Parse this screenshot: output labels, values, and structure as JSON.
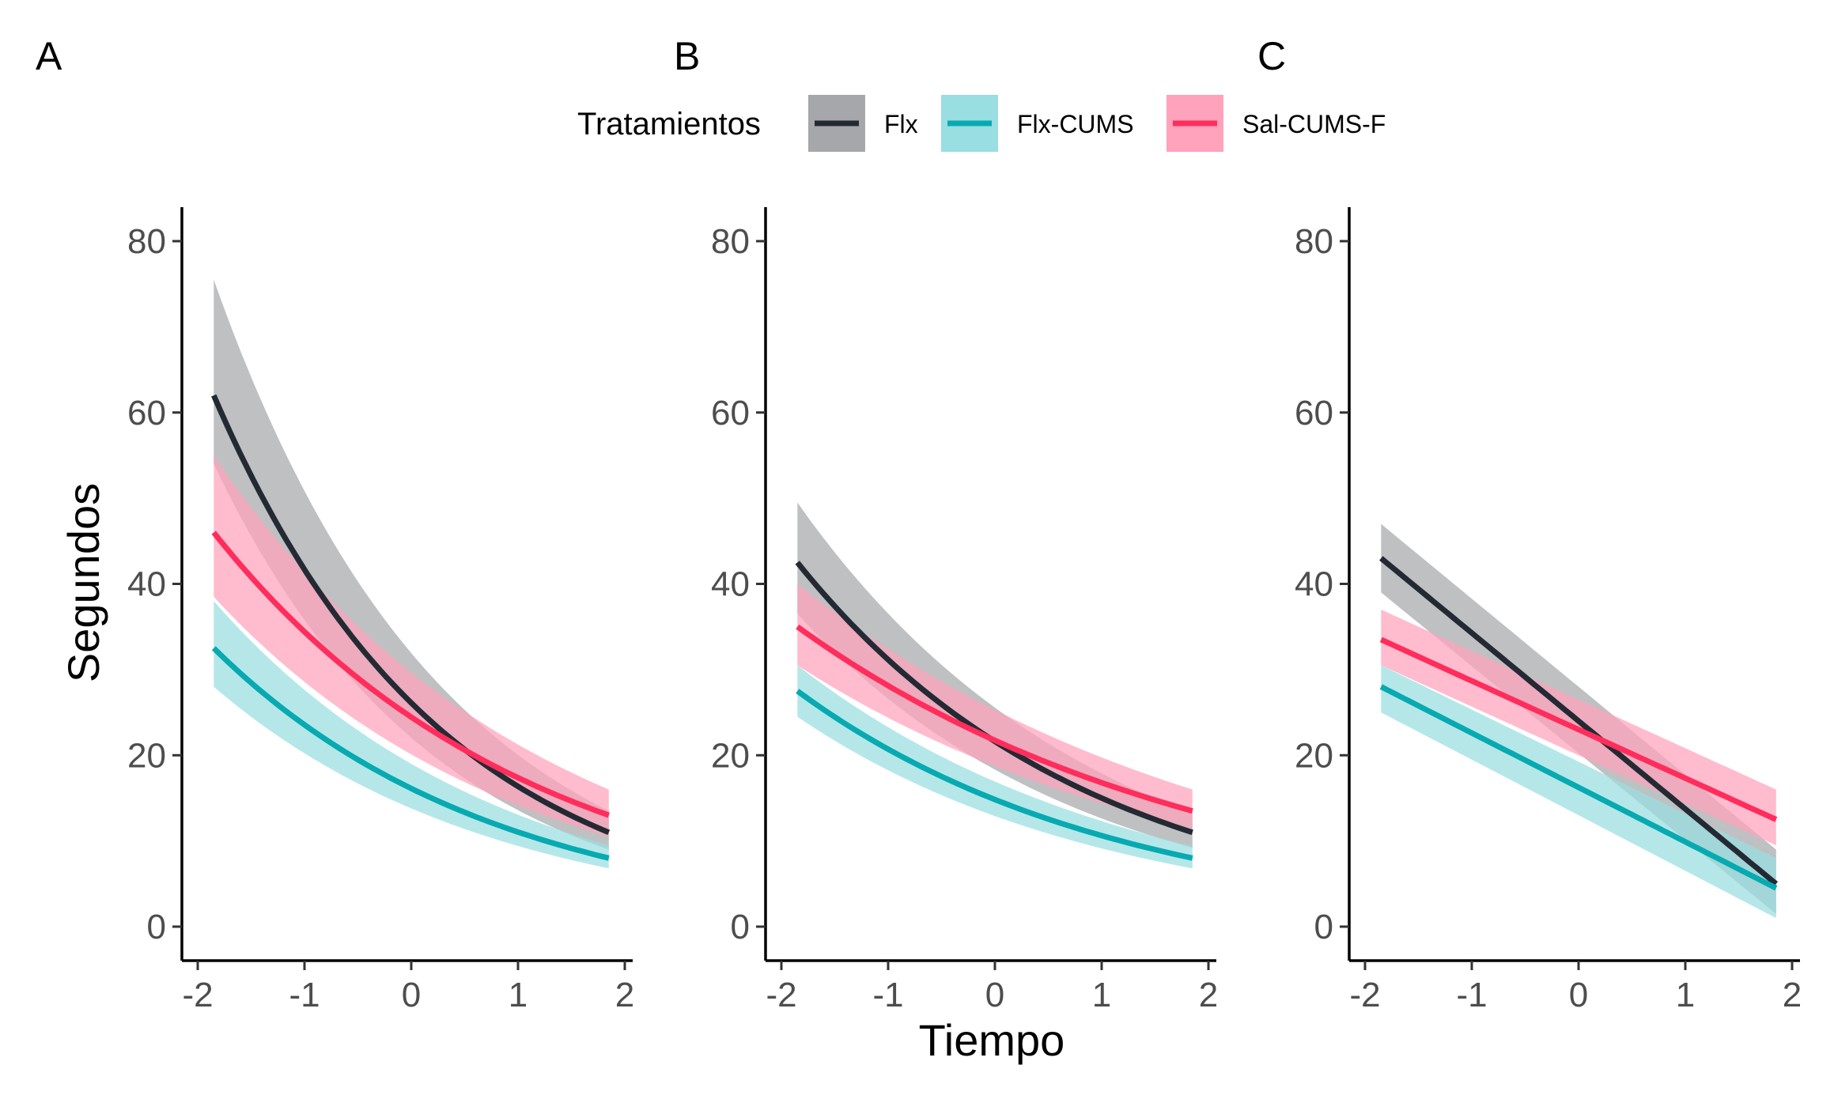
{
  "legend": {
    "title": "Tratamientos",
    "items": [
      {
        "name": "Flx",
        "line_color": "#232a33",
        "band_color": "#a6a7ab"
      },
      {
        "name": "Flx-CUMS",
        "line_color": "#07aab0",
        "band_color": "#99dee1"
      },
      {
        "name": "Sal-CUMS-F",
        "line_color": "#ff2d5c",
        "band_color": "#ffa2bb"
      }
    ]
  },
  "axes": {
    "ylabel": "Segundos",
    "xlabel": "Tiempo",
    "xticks": [
      "-2",
      "-1",
      "0",
      "1",
      "2"
    ],
    "yticks": [
      "0",
      "20",
      "40",
      "60",
      "80"
    ]
  },
  "chart_data": [
    {
      "panel": "A",
      "type": "line",
      "xlim": [
        -2,
        2
      ],
      "ylim": [
        0,
        80
      ],
      "grid": false,
      "x": [
        -1.85,
        1.85
      ],
      "series": [
        {
          "name": "Flx",
          "model": "exponential",
          "y": [
            62,
            11
          ],
          "lower": [
            54,
            9
          ],
          "upper": [
            75.5,
            13.5
          ]
        },
        {
          "name": "Flx-CUMS",
          "model": "exponential",
          "y": [
            32.5,
            8
          ],
          "lower": [
            28,
            6.8
          ],
          "upper": [
            38,
            9.5
          ]
        },
        {
          "name": "Sal-CUMS-F",
          "model": "exponential",
          "y": [
            46,
            13
          ],
          "lower": [
            38.5,
            10.5
          ],
          "upper": [
            55,
            16
          ]
        }
      ]
    },
    {
      "panel": "B",
      "type": "line",
      "xlim": [
        -2,
        2
      ],
      "ylim": [
        0,
        80
      ],
      "grid": false,
      "x": [
        -1.85,
        1.85
      ],
      "series": [
        {
          "name": "Flx",
          "model": "exponential",
          "y": [
            42.5,
            11
          ],
          "lower": [
            36.5,
            9.2
          ],
          "upper": [
            49.5,
            13.2
          ]
        },
        {
          "name": "Flx-CUMS",
          "model": "exponential",
          "y": [
            27.5,
            8
          ],
          "lower": [
            24.5,
            6.8
          ],
          "upper": [
            30.5,
            9.4
          ]
        },
        {
          "name": "Sal-CUMS-F",
          "model": "exponential",
          "y": [
            35,
            13.5
          ],
          "lower": [
            30.5,
            11.5
          ],
          "upper": [
            40,
            16
          ]
        }
      ]
    },
    {
      "panel": "C",
      "type": "line",
      "xlim": [
        -2,
        2
      ],
      "ylim": [
        0,
        80
      ],
      "grid": false,
      "x": [
        -1.85,
        1.85
      ],
      "series": [
        {
          "name": "Flx",
          "model": "linear",
          "y": [
            43,
            5
          ],
          "lower": [
            39,
            1.5
          ],
          "upper": [
            47,
            9
          ]
        },
        {
          "name": "Flx-CUMS",
          "model": "linear",
          "y": [
            28,
            4.5
          ],
          "lower": [
            25,
            1
          ],
          "upper": [
            30.5,
            8
          ]
        },
        {
          "name": "Sal-CUMS-F",
          "model": "linear",
          "y": [
            33.5,
            12.5
          ],
          "lower": [
            30.5,
            9.5
          ],
          "upper": [
            37,
            16
          ]
        }
      ]
    }
  ]
}
